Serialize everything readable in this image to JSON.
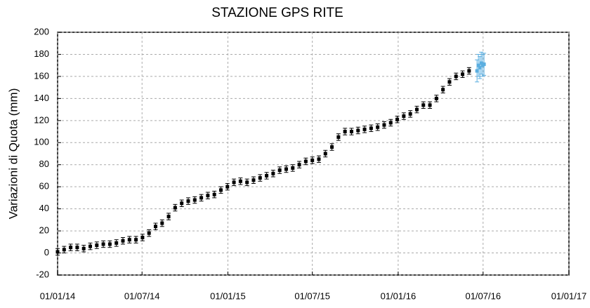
{
  "chart_data": {
    "type": "errorbar",
    "title": "STAZIONE GPS RITE",
    "ylabel": "Variazioni di Quota (mm)",
    "xlim": [
      "2014-01-01",
      "2017-01-01"
    ],
    "xticks": [
      {
        "value": "2014-01-01",
        "label": "01/01/14"
      },
      {
        "value": "2014-07-01",
        "label": "01/07/14"
      },
      {
        "value": "2015-01-01",
        "label": "01/01/15"
      },
      {
        "value": "2015-07-01",
        "label": "01/07/15"
      },
      {
        "value": "2016-01-01",
        "label": "01/01/16"
      },
      {
        "value": "2016-07-01",
        "label": "01/07/16"
      },
      {
        "value": "2017-01-01",
        "label": "01/01/17"
      }
    ],
    "ylim": [
      -20,
      200
    ],
    "yticks": [
      -20,
      0,
      20,
      40,
      60,
      80,
      100,
      120,
      140,
      160,
      180,
      200
    ],
    "grid": true,
    "series": [
      {
        "color": "#000000",
        "error": 3,
        "x": [
          "2014-01-01",
          "2014-01-15",
          "2014-01-29",
          "2014-02-12",
          "2014-02-26",
          "2014-03-12",
          "2014-03-26",
          "2014-04-09",
          "2014-04-23",
          "2014-05-07",
          "2014-05-21",
          "2014-06-04",
          "2014-06-18",
          "2014-07-02",
          "2014-07-16",
          "2014-07-30",
          "2014-08-13",
          "2014-08-27",
          "2014-09-10",
          "2014-09-24",
          "2014-10-08",
          "2014-10-22",
          "2014-11-05",
          "2014-11-19",
          "2014-12-03",
          "2014-12-17",
          "2014-12-31",
          "2015-01-14",
          "2015-01-28",
          "2015-02-11",
          "2015-02-25",
          "2015-03-11",
          "2015-03-25",
          "2015-04-08",
          "2015-04-22",
          "2015-05-06",
          "2015-05-20",
          "2015-06-03",
          "2015-06-17",
          "2015-07-01",
          "2015-07-15",
          "2015-07-29",
          "2015-08-12",
          "2015-08-26",
          "2015-09-09",
          "2015-09-23",
          "2015-10-07",
          "2015-10-21",
          "2015-11-04",
          "2015-11-18",
          "2015-12-02",
          "2015-12-16",
          "2015-12-30",
          "2016-01-13",
          "2016-01-27",
          "2016-02-10",
          "2016-02-24",
          "2016-03-09",
          "2016-03-23",
          "2016-04-06",
          "2016-04-20",
          "2016-05-04",
          "2016-05-18",
          "2016-06-01"
        ],
        "values": [
          1,
          3,
          5,
          5,
          4,
          6,
          7,
          8,
          8,
          9,
          11,
          12,
          12,
          14,
          18,
          24,
          27,
          33,
          41,
          45,
          47,
          48,
          50,
          52,
          53,
          57,
          60,
          64,
          65,
          64,
          66,
          68,
          70,
          72,
          75,
          76,
          77,
          80,
          83,
          84,
          85,
          90,
          96,
          105,
          110,
          110,
          111,
          112,
          113,
          114,
          116,
          118,
          121,
          124,
          126,
          130,
          134,
          134,
          140,
          148,
          155,
          160,
          162,
          165
        ]
      },
      {
        "color": "#5aaee0",
        "error": 10,
        "x": [
          "2016-06-18",
          "2016-06-21",
          "2016-06-24",
          "2016-06-27",
          "2016-06-30",
          "2016-07-03"
        ],
        "values": [
          165,
          170,
          168,
          172,
          170,
          171
        ]
      }
    ]
  }
}
